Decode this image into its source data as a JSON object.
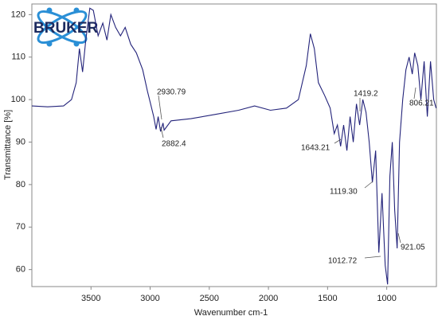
{
  "logo": {
    "text": "BRUKER"
  },
  "chart_data": {
    "type": "line",
    "xlabel": "Wavenumber cm-1",
    "ylabel": "Transmittance [%]",
    "color": "#23237a",
    "xlim": [
      4000,
      580
    ],
    "ylim": [
      56,
      122.5
    ],
    "xticks": [
      3500,
      3000,
      2500,
      2000,
      1500,
      1000
    ],
    "yticks": [
      60,
      70,
      80,
      90,
      100,
      110,
      120
    ],
    "x": [
      4000,
      3867,
      3732,
      3665,
      3625,
      3598,
      3571,
      3544,
      3510,
      3480,
      3440,
      3400,
      3365,
      3332,
      3292,
      3251,
      3211,
      3164,
      3117,
      3063,
      3023,
      2996,
      2970,
      2950,
      2932,
      2912,
      2891,
      2882,
      2823,
      2655,
      2453,
      2252,
      2117,
      1983,
      1848,
      1747,
      1680,
      1646,
      1612,
      1578,
      1525,
      1478,
      1444,
      1417,
      1390,
      1364,
      1337,
      1310,
      1283,
      1256,
      1229,
      1202,
      1175,
      1148,
      1121,
      1094,
      1067,
      1040,
      1013,
      993,
      973,
      953,
      933,
      912,
      892,
      865,
      838,
      811,
      784,
      764,
      737,
      711,
      684,
      657,
      630,
      603,
      583
    ],
    "values": [
      98.5,
      98.3,
      98.5,
      100,
      104,
      112,
      106.5,
      114,
      121.5,
      121,
      115,
      118,
      114,
      120,
      117,
      115,
      117,
      113,
      111,
      107,
      102,
      99,
      96,
      93,
      96,
      92.5,
      94.5,
      92.8,
      95,
      95.5,
      96.5,
      97.5,
      98.5,
      97.5,
      98,
      100,
      108,
      115.5,
      112,
      104,
      101,
      98,
      92,
      94,
      89,
      94,
      88,
      96,
      90,
      99,
      94,
      100,
      97,
      90,
      80.5,
      88,
      64,
      78,
      61,
      56.5,
      82,
      90,
      74,
      65,
      90,
      100,
      107,
      110,
      106,
      111,
      108,
      100,
      109,
      96,
      109,
      100,
      98
    ],
    "annotations": [
      "2930.79",
      "2882.4",
      "1643.21",
      "1419.2",
      "1119.30",
      "1012.72",
      "921.05",
      "806.21"
    ]
  }
}
